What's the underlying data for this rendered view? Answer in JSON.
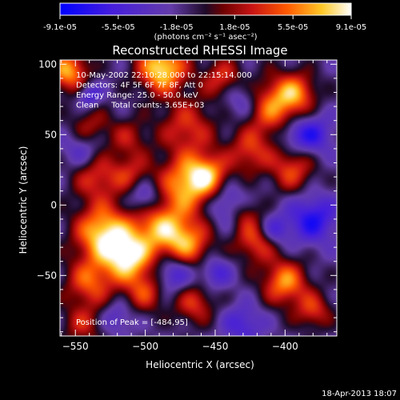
{
  "chart_data": {
    "type": "heatmap",
    "title": "Reconstructed RHESSI Image",
    "xlabel": "Heliocentric X (arcsec)",
    "ylabel": "Heliocentric Y (arcsec)",
    "xlim": [
      -561,
      -363
    ],
    "ylim": [
      -93,
      103
    ],
    "x_ticks": [
      -550,
      -500,
      -450,
      -400
    ],
    "y_ticks": [
      100,
      50,
      0,
      -50
    ],
    "colorbar": {
      "ticks": [
        "-9.1e-05",
        "-5.5e-05",
        "-1.8e-05",
        "1.8e-05",
        "5.5e-05",
        "9.1e-05"
      ],
      "unit": "(photons cm⁻² s⁻¹ asec⁻²)",
      "min": -9.1e-05,
      "max": 9.1e-05
    },
    "annotations": [
      "10-May-2002 22:10:28.000 to 22:15:14.000",
      "Detectors: 4F 5F 6F 7F 8F, Att 0",
      "Energy Range: 25.0 - 50.0 keV",
      "Clean     Total counts: 3.65E+03"
    ],
    "peak_label": "Position of Peak = [-484,95]",
    "peak": {
      "x": -484,
      "y": 95
    },
    "blobs": [
      {
        "x": -488,
        "y": 97,
        "r": 12,
        "a": 1.0
      },
      {
        "x": -555,
        "y": 95,
        "r": 10,
        "a": 0.8
      },
      {
        "x": -445,
        "y": 90,
        "r": 10,
        "a": 0.5
      },
      {
        "x": -410,
        "y": 70,
        "r": 14,
        "a": 0.7
      },
      {
        "x": -392,
        "y": 80,
        "r": 10,
        "a": 0.6
      },
      {
        "x": -470,
        "y": 55,
        "r": 14,
        "a": 0.5
      },
      {
        "x": -540,
        "y": 55,
        "r": 10,
        "a": 0.4
      },
      {
        "x": -512,
        "y": 48,
        "r": 10,
        "a": 0.35
      },
      {
        "x": -425,
        "y": 38,
        "r": 11,
        "a": 0.5
      },
      {
        "x": -395,
        "y": 25,
        "r": 11,
        "a": 0.55
      },
      {
        "x": -535,
        "y": 20,
        "r": 12,
        "a": 0.5
      },
      {
        "x": -510,
        "y": 22,
        "r": 10,
        "a": 0.4
      },
      {
        "x": -470,
        "y": 15,
        "r": 14,
        "a": 0.8
      },
      {
        "x": -455,
        "y": 22,
        "r": 10,
        "a": 0.6
      },
      {
        "x": -490,
        "y": -15,
        "r": 14,
        "a": 0.75
      },
      {
        "x": -530,
        "y": -20,
        "r": 14,
        "a": 0.95
      },
      {
        "x": -512,
        "y": -38,
        "r": 12,
        "a": 0.9
      },
      {
        "x": -470,
        "y": -28,
        "r": 12,
        "a": 0.7
      },
      {
        "x": -420,
        "y": -25,
        "r": 11,
        "a": 0.6
      },
      {
        "x": -540,
        "y": -55,
        "r": 12,
        "a": 0.6
      },
      {
        "x": -500,
        "y": -62,
        "r": 10,
        "a": 0.5
      },
      {
        "x": -465,
        "y": -70,
        "r": 10,
        "a": 0.5
      },
      {
        "x": -400,
        "y": -55,
        "r": 11,
        "a": 0.75
      },
      {
        "x": -380,
        "y": -75,
        "r": 9,
        "a": 0.5
      },
      {
        "x": -545,
        "y": -85,
        "r": 10,
        "a": 0.4
      },
      {
        "x": -430,
        "y": -5,
        "r": 8,
        "a": 0.4
      },
      {
        "x": -540,
        "y": 78,
        "r": 6,
        "a": -0.45
      },
      {
        "x": -430,
        "y": 75,
        "r": 10,
        "a": -0.4
      },
      {
        "x": -380,
        "y": 50,
        "r": 10,
        "a": -0.5
      },
      {
        "x": -500,
        "y": 5,
        "r": 9,
        "a": -0.5
      },
      {
        "x": -440,
        "y": 0,
        "r": 10,
        "a": -0.45
      },
      {
        "x": -380,
        "y": -10,
        "r": 12,
        "a": -0.6
      },
      {
        "x": -408,
        "y": -18,
        "r": 8,
        "a": -0.5
      },
      {
        "x": -545,
        "y": 40,
        "r": 10,
        "a": -0.35
      },
      {
        "x": -480,
        "y": -48,
        "r": 10,
        "a": -0.5
      },
      {
        "x": -450,
        "y": -48,
        "r": 8,
        "a": -0.4
      },
      {
        "x": -430,
        "y": -85,
        "r": 10,
        "a": -0.4
      },
      {
        "x": -520,
        "y": -80,
        "r": 8,
        "a": -0.3
      },
      {
        "x": -395,
        "y": 50,
        "r": 8,
        "a": -0.3
      }
    ]
  },
  "footer": {
    "timestamp": "18-Apr-2013 18:07"
  }
}
